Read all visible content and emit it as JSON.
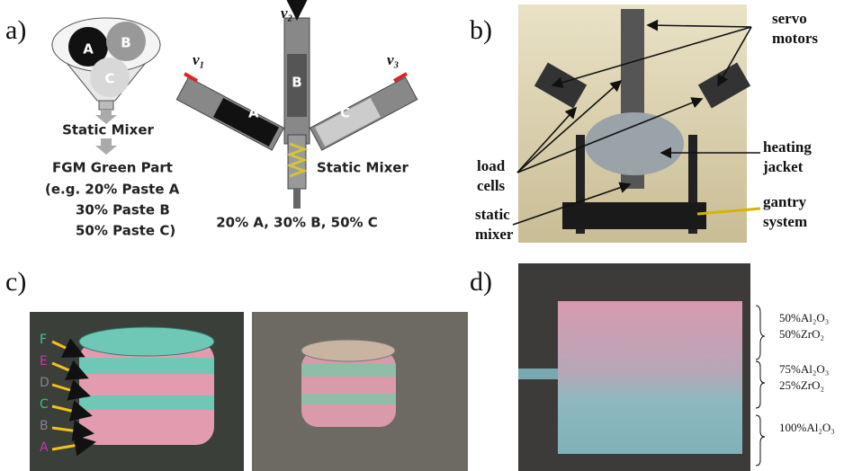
{
  "panels": {
    "a": {
      "label": "a)",
      "funnel": [
        "A",
        "B",
        "C"
      ],
      "flow": [
        "Static Mixer",
        "FGM Green Part",
        "(e.g. 20% Paste A",
        "30%  Paste B",
        "50% Paste C)"
      ],
      "syringe": {
        "velocities": [
          "v₁",
          "v₂",
          "v₃"
        ],
        "labels": [
          "A",
          "B",
          "C"
        ],
        "mixer": "Static Mixer",
        "result": "20% A, 30% B, 50% C"
      }
    },
    "b": {
      "label": "b)",
      "annotations": [
        [
          "servo",
          "motors"
        ],
        [
          "heating",
          "jacket"
        ],
        [
          "gantry",
          "system"
        ],
        [
          "load",
          "cells"
        ],
        [
          "static",
          "mixer"
        ]
      ]
    },
    "c": {
      "label": "c)",
      "layers": [
        "F",
        "E",
        "D",
        "C",
        "B",
        "A"
      ]
    },
    "d": {
      "label": "d)",
      "compositions": [
        [
          "50%Al₂O₃",
          "50%ZrO₂"
        ],
        [
          "75%Al₂O₃",
          "25%ZrO₂"
        ],
        [
          "100%Al₂O₃"
        ]
      ]
    }
  }
}
